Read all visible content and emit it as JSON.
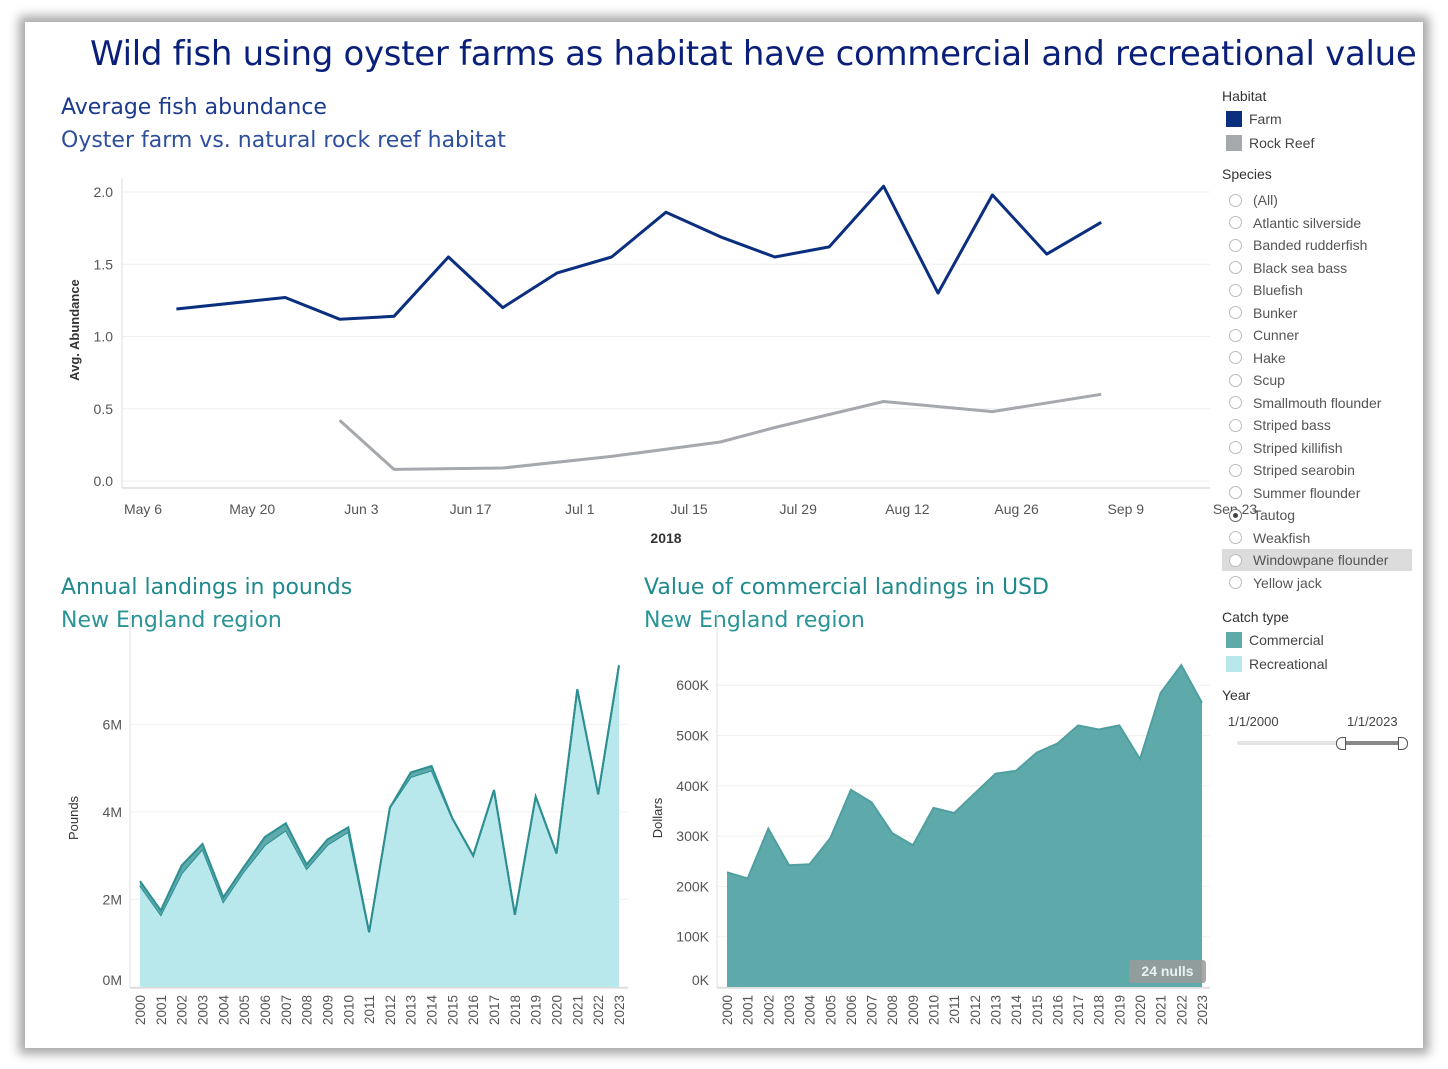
{
  "title": "Wild fish using oyster farms as habitat have commercial and recreational value",
  "top_chart": {
    "heading": "Average fish abundance",
    "subheading": "Oyster farm vs. natural rock reef habitat"
  },
  "left_chart": {
    "heading": "Annual landings in pounds",
    "subheading": "New England region"
  },
  "right_chart": {
    "heading": "Value of commercial landings in USD",
    "subheading": "New England region",
    "nulls_badge": "24 nulls"
  },
  "filters": {
    "habitat_title": "Habitat",
    "habitat_items": [
      {
        "label": "Farm",
        "color": "#0b2f7f"
      },
      {
        "label": "Rock Reef",
        "color": "#a5a8ac"
      }
    ],
    "species_title": "Species",
    "species": [
      "(All)",
      "Atlantic silverside",
      "Banded rudderfish",
      "Black sea bass",
      "Bluefish",
      "Bunker",
      "Cunner",
      "Hake",
      "Scup",
      "Smallmouth flounder",
      "Striped bass",
      "Striped killifish",
      "Striped searobin",
      "Summer flounder",
      "Tautog",
      "Weakfish",
      "Windowpane flounder",
      "Yellow jack"
    ],
    "species_selected": "Tautog",
    "species_hover": "Windowpane flounder",
    "catch_title": "Catch type",
    "catch_items": [
      {
        "label": "Commercial",
        "color": "#5ea9aa"
      },
      {
        "label": "Recreational",
        "color": "#b8e8ec"
      }
    ],
    "year_title": "Year",
    "year_start": "1/1/2000",
    "year_end": "1/1/2023"
  },
  "chart_data": [
    {
      "type": "line",
      "title": "Average fish abundance",
      "xlabel": "2018",
      "ylabel": "Avg. Abundance",
      "ylim": [
        0,
        2.0
      ],
      "yticks": [
        "0.0",
        "0.5",
        "1.0",
        "1.5",
        "2.0"
      ],
      "xticks": [
        "May 6",
        "May 20",
        "Jun 3",
        "Jun 17",
        "Jul 1",
        "Jul 15",
        "Jul 29",
        "Aug 12",
        "Aug 26",
        "Sep 9",
        "Sep 23"
      ],
      "series": [
        {
          "name": "Farm",
          "color": "#0b2f7f",
          "days": [
            8,
            22,
            29,
            36,
            43,
            50,
            57,
            64,
            71,
            78,
            85,
            92,
            99,
            106,
            113,
            120,
            127
          ],
          "values": [
            1.19,
            1.27,
            1.12,
            1.14,
            1.55,
            1.2,
            1.44,
            1.55,
            1.86,
            1.69,
            1.55,
            1.62,
            2.04,
            1.3,
            1.98,
            1.57,
            1.79
          ]
        },
        {
          "name": "Rock Reef",
          "color": "#a5a8ac",
          "days": [
            29,
            36,
            50,
            64,
            78,
            85,
            99,
            113,
            127
          ],
          "values": [
            0.42,
            0.08,
            0.09,
            0.17,
            0.27,
            0.37,
            0.55,
            0.48,
            0.6
          ]
        }
      ]
    },
    {
      "type": "area",
      "title": "Annual landings in pounds",
      "ylabel": "Pounds",
      "ylim": [
        0,
        7.7
      ],
      "yticks": [
        "0M",
        "2M",
        "4M",
        "6M"
      ],
      "categories": [
        "2000",
        "2001",
        "2002",
        "2003",
        "2004",
        "2005",
        "2006",
        "2007",
        "2008",
        "2009",
        "2010",
        "2011",
        "2012",
        "2013",
        "2014",
        "2015",
        "2016",
        "2017",
        "2018",
        "2019",
        "2020",
        "2021",
        "2022",
        "2023"
      ],
      "series": [
        {
          "name": "Recreational",
          "color": "#b8e8ec",
          "values": [
            2.32,
            1.65,
            2.6,
            3.15,
            1.95,
            2.65,
            3.25,
            3.58,
            2.7,
            3.25,
            3.55,
            1.25,
            4.1,
            4.8,
            4.95,
            3.85,
            3.0,
            4.5,
            1.65,
            4.35,
            3.05,
            6.8,
            4.4,
            7.35
          ]
        },
        {
          "name": "Commercial",
          "color": "#5ea9aa",
          "values": [
            0.1,
            0.1,
            0.18,
            0.12,
            0.1,
            0.1,
            0.18,
            0.16,
            0.1,
            0.12,
            0.1,
            0.0,
            0.0,
            0.1,
            0.1,
            0.0,
            0.0,
            0.0,
            0.0,
            0.0,
            0.0,
            0.0,
            0.0,
            0.0
          ]
        }
      ]
    },
    {
      "type": "area",
      "title": "Value of commercial landings in USD",
      "ylabel": "Dollars",
      "ylim": [
        0,
        670000
      ],
      "yticks": [
        "0K",
        "100K",
        "200K",
        "300K",
        "400K",
        "500K",
        "600K"
      ],
      "categories": [
        "2000",
        "2001",
        "2002",
        "2003",
        "2004",
        "2005",
        "2006",
        "2007",
        "2008",
        "2009",
        "2010",
        "2011",
        "2012",
        "2013",
        "2014",
        "2015",
        "2016",
        "2017",
        "2018",
        "2019",
        "2020",
        "2021",
        "2022",
        "2023"
      ],
      "series": [
        {
          "name": "Commercial",
          "color": "#5ea9aa",
          "values": [
            228000,
            216000,
            315000,
            242000,
            244000,
            296000,
            392000,
            367000,
            306000,
            282000,
            356000,
            346000,
            385000,
            424000,
            430000,
            466000,
            484000,
            520000,
            512000,
            520000,
            453000,
            585000,
            640000,
            565000
          ]
        }
      ]
    }
  ]
}
